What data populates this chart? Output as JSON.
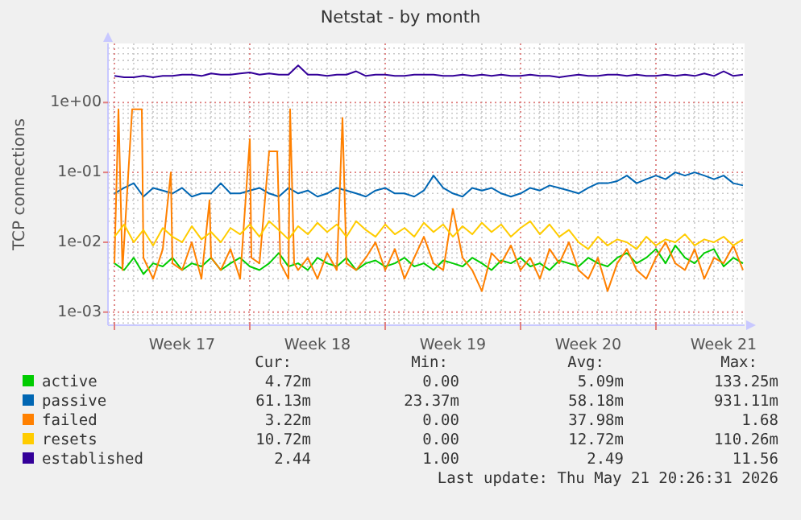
{
  "chart_data": {
    "type": "line",
    "title": "Netstat - by month",
    "ylabel": "TCP connections",
    "log": "y",
    "grid": true,
    "legend": "bottom",
    "marker": "none",
    "line_style": "solid",
    "xlim": [
      "2026-04-19T16:00",
      "2026-05-22T14:00"
    ],
    "ylim": [
      0.00065,
      7
    ],
    "xticks": [
      {
        "value": "2026-04-20",
        "label": null
      },
      {
        "value": "2026-04-23T12:00",
        "label": "Week 17"
      },
      {
        "value": "2026-04-27",
        "label": null
      },
      {
        "value": "2026-04-30T12:00",
        "label": "Week 18"
      },
      {
        "value": "2026-05-04",
        "label": null
      },
      {
        "value": "2026-05-07T12:00",
        "label": "Week 19"
      },
      {
        "value": "2026-05-11",
        "label": null
      },
      {
        "value": "2026-05-14T12:00",
        "label": "Week 20"
      },
      {
        "value": "2026-05-18",
        "label": null
      },
      {
        "value": "2026-05-21T12:00",
        "label": "Week 21"
      }
    ],
    "yticks": [
      {
        "value": 0.001,
        "label": "1e-03"
      },
      {
        "value": 0.01,
        "label": "1e-02"
      },
      {
        "value": 0.1,
        "label": "1e-01"
      },
      {
        "value": 1,
        "label": "1e+00"
      }
    ],
    "x": [
      "2026-04-20T00:00",
      "2026-04-20T12:00",
      "2026-04-21T00:00",
      "2026-04-21T12:00",
      "2026-04-22T00:00",
      "2026-04-22T12:00",
      "2026-04-23T00:00",
      "2026-04-23T12:00",
      "2026-04-24T00:00",
      "2026-04-24T12:00",
      "2026-04-25T00:00",
      "2026-04-25T12:00",
      "2026-04-26T00:00",
      "2026-04-26T12:00",
      "2026-04-27T00:00",
      "2026-04-27T12:00",
      "2026-04-28T00:00",
      "2026-04-28T12:00",
      "2026-04-29T00:00",
      "2026-04-29T12:00",
      "2026-04-30T00:00",
      "2026-04-30T12:00",
      "2026-05-01T00:00",
      "2026-05-01T12:00",
      "2026-05-02T00:00",
      "2026-05-02T12:00",
      "2026-05-03T00:00",
      "2026-05-03T12:00",
      "2026-05-04T00:00",
      "2026-05-04T12:00",
      "2026-05-05T00:00",
      "2026-05-05T12:00",
      "2026-05-06T00:00",
      "2026-05-06T12:00",
      "2026-05-07T00:00",
      "2026-05-07T12:00",
      "2026-05-08T00:00",
      "2026-05-08T12:00",
      "2026-05-09T00:00",
      "2026-05-09T12:00",
      "2026-05-10T00:00",
      "2026-05-10T12:00",
      "2026-05-11T00:00",
      "2026-05-11T12:00",
      "2026-05-12T00:00",
      "2026-05-12T12:00",
      "2026-05-13T00:00",
      "2026-05-13T12:00",
      "2026-05-14T00:00",
      "2026-05-14T12:00",
      "2026-05-15T00:00",
      "2026-05-15T12:00",
      "2026-05-16T00:00",
      "2026-05-16T12:00",
      "2026-05-17T00:00",
      "2026-05-17T12:00",
      "2026-05-18T00:00",
      "2026-05-18T12:00",
      "2026-05-19T00:00",
      "2026-05-19T12:00",
      "2026-05-20T00:00",
      "2026-05-20T12:00",
      "2026-05-21T00:00",
      "2026-05-21T12:00",
      "2026-05-22T00:00",
      "2026-05-22T12:00"
    ],
    "series": [
      {
        "name": "active",
        "color": "#00cc00",
        "values": [
          0.005,
          0.004,
          0.006,
          0.0035,
          0.005,
          0.0045,
          0.006,
          0.004,
          0.005,
          0.0045,
          0.006,
          0.004,
          0.005,
          0.006,
          0.0045,
          0.004,
          0.005,
          0.007,
          0.0045,
          0.005,
          0.004,
          0.006,
          0.005,
          0.0045,
          0.006,
          0.004,
          0.005,
          0.0055,
          0.0045,
          0.005,
          0.006,
          0.0045,
          0.005,
          0.004,
          0.0055,
          0.005,
          0.0045,
          0.006,
          0.005,
          0.004,
          0.0055,
          0.005,
          0.006,
          0.0045,
          0.005,
          0.004,
          0.0055,
          0.005,
          0.0045,
          0.006,
          0.005,
          0.0045,
          0.006,
          0.007,
          0.005,
          0.006,
          0.008,
          0.005,
          0.009,
          0.006,
          0.005,
          0.007,
          0.008,
          0.0045,
          0.006,
          0.005
        ]
      },
      {
        "name": "passive",
        "color": "#0066b3",
        "values": [
          0.05,
          0.06,
          0.07,
          0.045,
          0.06,
          0.055,
          0.05,
          0.06,
          0.045,
          0.05,
          0.05,
          0.07,
          0.05,
          0.05,
          0.055,
          0.06,
          0.05,
          0.045,
          0.06,
          0.05,
          0.055,
          0.045,
          0.05,
          0.06,
          0.055,
          0.05,
          0.045,
          0.055,
          0.06,
          0.05,
          0.05,
          0.045,
          0.055,
          0.09,
          0.06,
          0.05,
          0.045,
          0.06,
          0.055,
          0.06,
          0.05,
          0.045,
          0.05,
          0.06,
          0.055,
          0.065,
          0.06,
          0.055,
          0.05,
          0.06,
          0.07,
          0.07,
          0.075,
          0.09,
          0.07,
          0.08,
          0.09,
          0.08,
          0.1,
          0.09,
          0.1,
          0.09,
          0.08,
          0.09,
          0.07,
          0.065
        ]
      },
      {
        "name": "failed",
        "color": "#ff8000",
        "x": [
          "2026-04-20T00:00",
          "2026-04-20T05:00",
          "2026-04-20T10:00",
          "2026-04-20T22:00",
          "2026-04-21T00:00",
          "2026-04-21T10:00",
          "2026-04-21T12:00",
          "2026-04-22T00:00",
          "2026-04-22T12:00",
          "2026-04-22T22:00",
          "2026-04-23T00:00",
          "2026-04-23T12:00",
          "2026-04-24T00:00",
          "2026-04-24T12:00",
          "2026-04-24T22:00",
          "2026-04-25T00:00",
          "2026-04-25T12:00",
          "2026-04-26T00:00",
          "2026-04-26T12:00",
          "2026-04-27T00:00",
          "2026-04-27T02:00",
          "2026-04-27T12:00",
          "2026-04-28T00:00",
          "2026-04-28T05:00",
          "2026-04-28T10:00",
          "2026-04-28T14:00",
          "2026-04-29T00:00",
          "2026-04-29T02:00",
          "2026-04-29T07:00",
          "2026-04-29T12:00",
          "2026-04-30T00:00",
          "2026-04-30T12:00",
          "2026-05-01T00:00",
          "2026-05-01T12:00",
          "2026-05-01T19:00",
          "2026-05-02T00:00",
          "2026-05-02T12:00",
          "2026-05-03T00:00",
          "2026-05-03T12:00",
          "2026-05-04T00:00",
          "2026-05-04T12:00",
          "2026-05-05T00:00",
          "2026-05-05T12:00",
          "2026-05-06T00:00",
          "2026-05-06T12:00",
          "2026-05-07T00:00",
          "2026-05-07T12:00",
          "2026-05-08T00:00",
          "2026-05-08T12:00",
          "2026-05-09T00:00",
          "2026-05-09T12:00",
          "2026-05-10T00:00",
          "2026-05-10T12:00",
          "2026-05-11T00:00",
          "2026-05-11T12:00",
          "2026-05-12T00:00",
          "2026-05-12T12:00",
          "2026-05-13T00:00",
          "2026-05-13T12:00",
          "2026-05-14T00:00",
          "2026-05-14T12:00",
          "2026-05-15T00:00",
          "2026-05-15T12:00",
          "2026-05-16T00:00",
          "2026-05-16T12:00",
          "2026-05-17T00:00",
          "2026-05-17T12:00",
          "2026-05-18T00:00",
          "2026-05-18T12:00",
          "2026-05-19T00:00",
          "2026-05-19T12:00",
          "2026-05-20T00:00",
          "2026-05-20T12:00",
          "2026-05-21T00:00",
          "2026-05-21T12:00",
          "2026-05-22T00:00",
          "2026-05-22T12:00"
        ],
        "values": [
          0.005,
          0.8,
          0.004,
          0.8,
          0.8,
          0.8,
          0.006,
          0.003,
          0.008,
          0.1,
          0.005,
          0.004,
          0.01,
          0.003,
          0.04,
          0.006,
          0.004,
          0.008,
          0.003,
          0.3,
          0.006,
          0.005,
          0.2,
          0.2,
          0.2,
          0.005,
          0.003,
          0.8,
          0.005,
          0.004,
          0.006,
          0.003,
          0.007,
          0.004,
          0.6,
          0.005,
          0.004,
          0.006,
          0.01,
          0.004,
          0.008,
          0.003,
          0.006,
          0.012,
          0.005,
          0.004,
          0.03,
          0.006,
          0.004,
          0.002,
          0.007,
          0.005,
          0.009,
          0.004,
          0.006,
          0.003,
          0.008,
          0.005,
          0.01,
          0.004,
          0.003,
          0.006,
          0.002,
          0.005,
          0.008,
          0.004,
          0.003,
          0.006,
          0.01,
          0.005,
          0.004,
          0.008,
          0.003,
          0.006,
          0.005,
          0.009,
          0.004
        ]
      },
      {
        "name": "resets",
        "color": "#ffcc00",
        "values": [
          0.012,
          0.018,
          0.01,
          0.015,
          0.009,
          0.016,
          0.012,
          0.01,
          0.017,
          0.011,
          0.014,
          0.01,
          0.016,
          0.013,
          0.018,
          0.012,
          0.02,
          0.015,
          0.011,
          0.017,
          0.013,
          0.019,
          0.014,
          0.018,
          0.012,
          0.02,
          0.015,
          0.012,
          0.018,
          0.013,
          0.016,
          0.012,
          0.019,
          0.014,
          0.018,
          0.012,
          0.017,
          0.013,
          0.019,
          0.014,
          0.018,
          0.012,
          0.016,
          0.02,
          0.013,
          0.018,
          0.012,
          0.015,
          0.01,
          0.008,
          0.012,
          0.009,
          0.011,
          0.01,
          0.008,
          0.012,
          0.009,
          0.011,
          0.01,
          0.013,
          0.009,
          0.011,
          0.01,
          0.012,
          0.009,
          0.011
        ]
      },
      {
        "name": "established",
        "color": "#330099",
        "values": [
          2.4,
          2.3,
          2.3,
          2.4,
          2.3,
          2.4,
          2.4,
          2.5,
          2.5,
          2.4,
          2.6,
          2.5,
          2.5,
          2.6,
          2.7,
          2.5,
          2.6,
          2.5,
          2.5,
          3.4,
          2.5,
          2.5,
          2.4,
          2.5,
          2.5,
          2.8,
          2.4,
          2.5,
          2.5,
          2.4,
          2.4,
          2.5,
          2.5,
          2.5,
          2.4,
          2.4,
          2.5,
          2.4,
          2.5,
          2.4,
          2.5,
          2.4,
          2.4,
          2.5,
          2.4,
          2.4,
          2.3,
          2.4,
          2.5,
          2.4,
          2.4,
          2.5,
          2.5,
          2.4,
          2.5,
          2.4,
          2.4,
          2.5,
          2.4,
          2.5,
          2.4,
          2.6,
          2.4,
          2.8,
          2.4,
          2.5
        ]
      }
    ],
    "annotations": [
      "Cur:",
      "Min:",
      "Avg:",
      "Max:",
      "4.72m",
      "0.00",
      "5.09m",
      "133.25m",
      "61.13m",
      "23.37m",
      "58.18m",
      "931.11m",
      "3.22m",
      "0.00",
      "37.98m",
      "1.68",
      "10.72m",
      "0.00",
      "12.72m",
      "110.26m",
      "2.44",
      "1.00",
      "2.49",
      "11.56",
      "Last update: Thu May 21 20:26:31 2026"
    ]
  }
}
